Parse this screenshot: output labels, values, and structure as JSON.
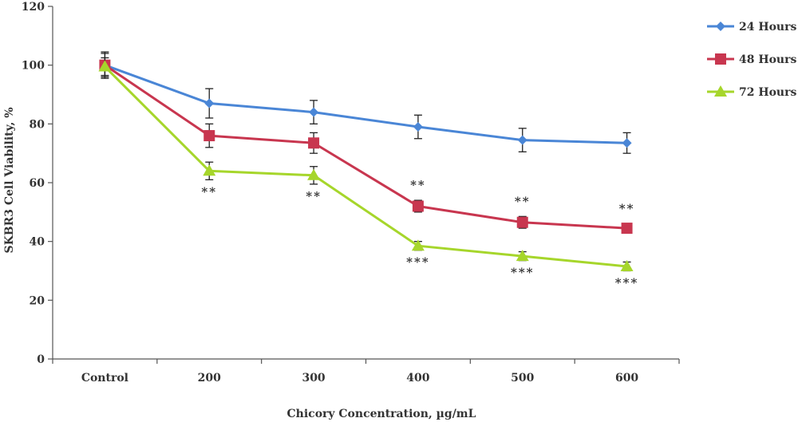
{
  "chart_data": {
    "type": "line",
    "title": "",
    "xlabel": "Chicory Concentration, µg/mL",
    "ylabel": "SKBR3 Cell Viability, %",
    "categories": [
      "Control",
      "200",
      "300",
      "400",
      "500",
      "600"
    ],
    "ylim": [
      0,
      120
    ],
    "yticks": [
      0,
      20,
      40,
      60,
      80,
      100,
      120
    ],
    "grid": false,
    "legend_position": "top-right",
    "series": [
      {
        "name": "24 Hours",
        "color": "#4a86d6",
        "marker": "diamond",
        "values": [
          100,
          87,
          84,
          79,
          74.5,
          73.5
        ],
        "errors": [
          4.5,
          5,
          4,
          4,
          4,
          3.5
        ],
        "significance": [
          "",
          "",
          "",
          "",
          "",
          ""
        ]
      },
      {
        "name": "48 Hours",
        "color": "#c8364f",
        "marker": "square",
        "values": [
          100,
          76,
          73.5,
          52,
          46.5,
          44.5
        ],
        "errors": [
          4,
          4,
          3.5,
          2,
          2,
          1.5
        ],
        "significance": [
          "",
          "",
          "",
          "**",
          "**",
          "**"
        ]
      },
      {
        "name": "72 Hours",
        "color": "#a6d62b",
        "marker": "triangle",
        "values": [
          99.5,
          64,
          62.5,
          38.5,
          35,
          31.5
        ],
        "errors": [
          3,
          3,
          3,
          1.5,
          1.5,
          1.5
        ],
        "significance": [
          "",
          "**",
          "**",
          "***",
          "***",
          "***"
        ]
      }
    ]
  }
}
